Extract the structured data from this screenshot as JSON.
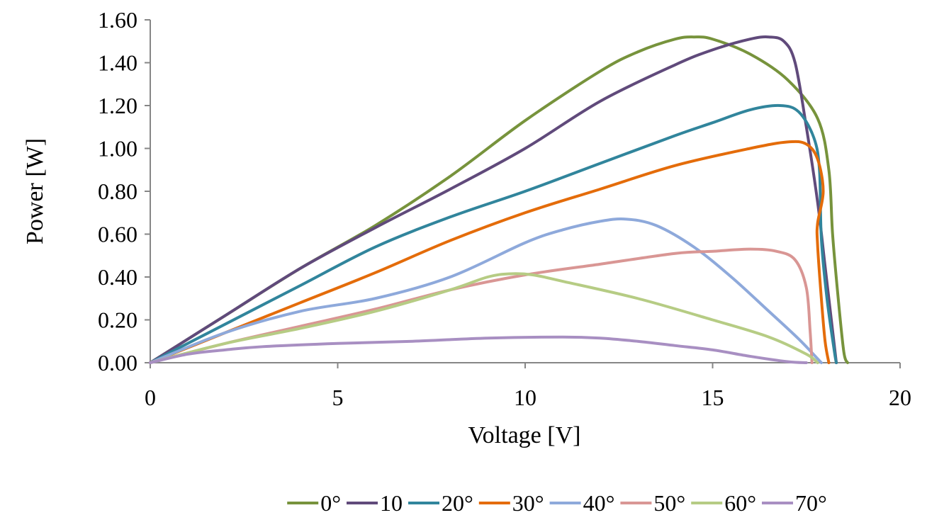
{
  "chart_data": {
    "type": "line",
    "xlabel": "Voltage [V]",
    "ylabel": "Power [W]",
    "xlim": [
      0,
      20
    ],
    "ylim": [
      0,
      1.6
    ],
    "x_ticks": [
      0,
      5,
      10,
      15,
      20
    ],
    "x_tick_labels": [
      "0",
      "5",
      "10",
      "15",
      "20"
    ],
    "y_ticks": [
      0,
      0.2,
      0.4,
      0.6,
      0.8,
      1.0,
      1.2,
      1.4,
      1.6
    ],
    "y_tick_labels": [
      "0.00",
      "0.20",
      "0.40",
      "0.60",
      "0.80",
      "1.00",
      "1.20",
      "1.40",
      "1.60"
    ],
    "grid": false,
    "legend_position": "bottom",
    "series": [
      {
        "name": "0°",
        "color": "#77933C",
        "points": [
          [
            0,
            0
          ],
          [
            2,
            0.22
          ],
          [
            4,
            0.44
          ],
          [
            6,
            0.64
          ],
          [
            8,
            0.87
          ],
          [
            10,
            1.13
          ],
          [
            12,
            1.36
          ],
          [
            13,
            1.45
          ],
          [
            14,
            1.51
          ],
          [
            14.5,
            1.52
          ],
          [
            15,
            1.51
          ],
          [
            16,
            1.44
          ],
          [
            17,
            1.32
          ],
          [
            17.8,
            1.14
          ],
          [
            18.1,
            0.9
          ],
          [
            18.2,
            0.6
          ],
          [
            18.35,
            0.3
          ],
          [
            18.5,
            0.05
          ],
          [
            18.6,
            0
          ]
        ]
      },
      {
        "name": "10",
        "color": "#604A7B",
        "points": [
          [
            0,
            0
          ],
          [
            2,
            0.22
          ],
          [
            4,
            0.44
          ],
          [
            6,
            0.63
          ],
          [
            8,
            0.81
          ],
          [
            10,
            1.0
          ],
          [
            12,
            1.22
          ],
          [
            14,
            1.39
          ],
          [
            15,
            1.46
          ],
          [
            16,
            1.51
          ],
          [
            16.5,
            1.52
          ],
          [
            16.9,
            1.5
          ],
          [
            17.2,
            1.4
          ],
          [
            17.5,
            1.1
          ],
          [
            17.8,
            0.75
          ],
          [
            18.0,
            0.45
          ],
          [
            18.2,
            0.15
          ],
          [
            18.3,
            0
          ]
        ]
      },
      {
        "name": "20°",
        "color": "#31859C",
        "points": [
          [
            0,
            0
          ],
          [
            2,
            0.18
          ],
          [
            4,
            0.36
          ],
          [
            6,
            0.54
          ],
          [
            8,
            0.68
          ],
          [
            10,
            0.8
          ],
          [
            12,
            0.93
          ],
          [
            14,
            1.06
          ],
          [
            15,
            1.12
          ],
          [
            16,
            1.18
          ],
          [
            16.8,
            1.2
          ],
          [
            17.3,
            1.17
          ],
          [
            17.7,
            1.05
          ],
          [
            17.85,
            0.9
          ],
          [
            17.9,
            0.58
          ],
          [
            18.05,
            0.3
          ],
          [
            18.25,
            0.05
          ],
          [
            18.3,
            0
          ]
        ]
      },
      {
        "name": "30°",
        "color": "#E46C0A",
        "points": [
          [
            0,
            0
          ],
          [
            2,
            0.14
          ],
          [
            4,
            0.28
          ],
          [
            6,
            0.42
          ],
          [
            8,
            0.57
          ],
          [
            10,
            0.7
          ],
          [
            12,
            0.81
          ],
          [
            14,
            0.92
          ],
          [
            16,
            1.0
          ],
          [
            17,
            1.03
          ],
          [
            17.5,
            1.02
          ],
          [
            17.8,
            0.95
          ],
          [
            17.95,
            0.8
          ],
          [
            17.8,
            0.65
          ],
          [
            17.8,
            0.55
          ],
          [
            17.9,
            0.3
          ],
          [
            18.0,
            0.1
          ],
          [
            18.1,
            0
          ]
        ]
      },
      {
        "name": "40°",
        "color": "#8EA9DB",
        "points": [
          [
            0,
            0
          ],
          [
            2,
            0.14
          ],
          [
            4,
            0.24
          ],
          [
            6,
            0.3
          ],
          [
            8,
            0.4
          ],
          [
            10,
            0.56
          ],
          [
            11,
            0.62
          ],
          [
            12,
            0.66
          ],
          [
            12.7,
            0.67
          ],
          [
            13.5,
            0.64
          ],
          [
            14.5,
            0.54
          ],
          [
            15.5,
            0.4
          ],
          [
            16.5,
            0.24
          ],
          [
            17.3,
            0.11
          ],
          [
            17.9,
            0
          ]
        ]
      },
      {
        "name": "50°",
        "color": "#D99694",
        "points": [
          [
            0,
            0
          ],
          [
            2,
            0.09
          ],
          [
            4,
            0.17
          ],
          [
            6,
            0.25
          ],
          [
            8,
            0.34
          ],
          [
            10,
            0.41
          ],
          [
            12,
            0.46
          ],
          [
            14,
            0.51
          ],
          [
            15,
            0.52
          ],
          [
            16,
            0.53
          ],
          [
            16.7,
            0.52
          ],
          [
            17.2,
            0.48
          ],
          [
            17.5,
            0.35
          ],
          [
            17.6,
            0.15
          ],
          [
            17.65,
            0
          ]
        ]
      },
      {
        "name": "60°",
        "color": "#B6CC84",
        "points": [
          [
            0,
            0
          ],
          [
            2,
            0.09
          ],
          [
            4,
            0.16
          ],
          [
            6,
            0.24
          ],
          [
            8,
            0.34
          ],
          [
            9,
            0.4
          ],
          [
            9.6,
            0.415
          ],
          [
            10.2,
            0.41
          ],
          [
            11,
            0.38
          ],
          [
            13,
            0.3
          ],
          [
            15,
            0.2
          ],
          [
            16.5,
            0.12
          ],
          [
            17.5,
            0.04
          ],
          [
            17.8,
            0
          ]
        ]
      },
      {
        "name": "70°",
        "color": "#A88FC2",
        "points": [
          [
            0,
            0
          ],
          [
            1,
            0.04
          ],
          [
            2,
            0.06
          ],
          [
            3,
            0.075
          ],
          [
            5,
            0.09
          ],
          [
            7,
            0.1
          ],
          [
            9,
            0.115
          ],
          [
            11,
            0.12
          ],
          [
            12,
            0.115
          ],
          [
            13,
            0.1
          ],
          [
            14,
            0.08
          ],
          [
            15,
            0.06
          ],
          [
            16,
            0.03
          ],
          [
            17,
            0.005
          ],
          [
            17.5,
            0
          ]
        ]
      }
    ]
  }
}
